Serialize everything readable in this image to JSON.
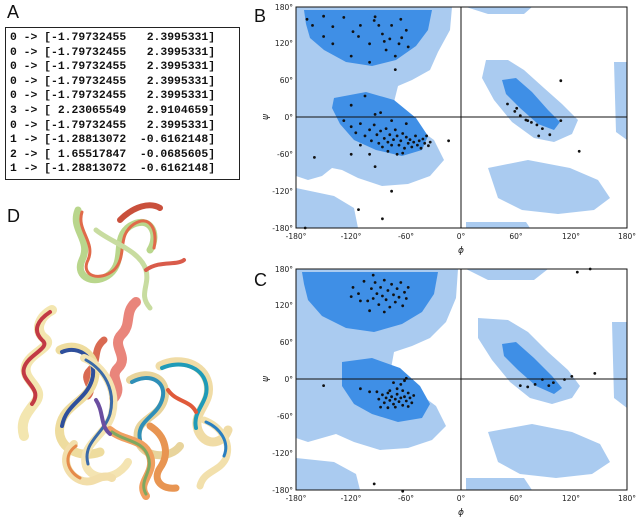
{
  "panel_labels": {
    "a": "A",
    "b": "B",
    "c": "C",
    "d": "D"
  },
  "panel_a": {
    "lines": [
      "0 -> [-1.79732455   2.3995331]",
      "0 -> [-1.79732455   2.3995331]",
      "0 -> [-1.79732455   2.3995331]",
      "0 -> [-1.79732455   2.3995331]",
      "0 -> [-1.79732455   2.3995331]",
      "3 -> [ 2.23065549   2.9104659]",
      "0 -> [-1.79732455   2.3995331]",
      "1 -> [-1.28813072  -0.6162148]",
      "2 -> [ 1.65517847  -0.0685605]",
      "1 -> [-1.28813072  -0.6162148]"
    ]
  },
  "ramachandran": {
    "xlabel": "ϕ",
    "ylabel": "ψ",
    "x_ticks": [
      "-180°",
      "-120°",
      "-60°",
      "0°",
      "60°",
      "120°",
      "180°"
    ],
    "y_ticks": [
      "180°",
      "120°",
      "60°",
      "0°",
      "-60°",
      "-120°",
      "-180°"
    ],
    "colors": {
      "allowed": "#aacbf0",
      "favored": "#3f8fe6",
      "points": "#111111"
    }
  },
  "chart_data": [
    {
      "type": "scatter",
      "panel": "B",
      "xlabel": "ϕ",
      "ylabel": "ψ",
      "xlim": [
        -180,
        180
      ],
      "ylim": [
        -180,
        180
      ],
      "points": [
        [
          -168,
          160
        ],
        [
          -162,
          150
        ],
        [
          -150,
          165
        ],
        [
          -140,
          148
        ],
        [
          -128,
          163
        ],
        [
          -118,
          140
        ],
        [
          -112,
          132
        ],
        [
          -100,
          120
        ],
        [
          -95,
          158
        ],
        [
          -90,
          150
        ],
        [
          -86,
          136
        ],
        [
          -82,
          110
        ],
        [
          -78,
          128
        ],
        [
          -76,
          150
        ],
        [
          -72,
          100
        ],
        [
          -68,
          120
        ],
        [
          -66,
          160
        ],
        [
          -60,
          142
        ],
        [
          -100,
          90
        ],
        [
          -72,
          78
        ],
        [
          -58,
          115
        ],
        [
          -140,
          120
        ],
        [
          -120,
          100
        ],
        [
          -94,
          164
        ],
        [
          -84,
          124
        ],
        [
          -65,
          130
        ],
        [
          -110,
          150
        ],
        [
          -150,
          132
        ],
        [
          -128,
          -5
        ],
        [
          -120,
          -15
        ],
        [
          -115,
          -25
        ],
        [
          -110,
          -10
        ],
        [
          -105,
          -30
        ],
        [
          -100,
          -20
        ],
        [
          -98,
          -38
        ],
        [
          -95,
          -12
        ],
        [
          -92,
          -28
        ],
        [
          -90,
          -42
        ],
        [
          -88,
          -22
        ],
        [
          -86,
          -48
        ],
        [
          -84,
          -34
        ],
        [
          -82,
          -18
        ],
        [
          -80,
          -40
        ],
        [
          -78,
          -28
        ],
        [
          -76,
          -45
        ],
        [
          -74,
          -36
        ],
        [
          -72,
          -20
        ],
        [
          -70,
          -30
        ],
        [
          -68,
          -45
        ],
        [
          -66,
          -38
        ],
        [
          -64,
          -26
        ],
        [
          -62,
          -50
        ],
        [
          -60,
          -32
        ],
        [
          -58,
          -42
        ],
        [
          -56,
          -36
        ],
        [
          -54,
          -48
        ],
        [
          -52,
          -40
        ],
        [
          -50,
          -30
        ],
        [
          -48,
          -45
        ],
        [
          -46,
          -38
        ],
        [
          -44,
          -50
        ],
        [
          -42,
          -35
        ],
        [
          -40,
          -42
        ],
        [
          -38,
          -30
        ],
        [
          -36,
          -46
        ],
        [
          -34,
          -40
        ],
        [
          -60,
          -10
        ],
        [
          -64,
          -58
        ],
        [
          -70,
          -60
        ],
        [
          -80,
          -55
        ],
        [
          -100,
          -60
        ],
        [
          -110,
          -45
        ],
        [
          -94,
          5
        ],
        [
          -88,
          8
        ],
        [
          -76,
          -5
        ],
        [
          -120,
          20
        ],
        [
          -105,
          35
        ],
        [
          -14,
          -38
        ],
        [
          -160,
          -65
        ],
        [
          -112,
          -150
        ],
        [
          -86,
          -165
        ],
        [
          -76,
          -120
        ],
        [
          -170,
          -180
        ],
        [
          -94,
          -80
        ],
        [
          -120,
          -60
        ],
        [
          50,
          22
        ],
        [
          58,
          10
        ],
        [
          64,
          3
        ],
        [
          70,
          -4
        ],
        [
          76,
          -8
        ],
        [
          82,
          -12
        ],
        [
          88,
          -18
        ],
        [
          96,
          -28
        ],
        [
          108,
          60
        ],
        [
          108,
          -5
        ],
        [
          128,
          -55
        ],
        [
          72,
          -5
        ],
        [
          84,
          -30
        ],
        [
          60,
          15
        ]
      ]
    },
    {
      "type": "scatter",
      "panel": "C",
      "xlabel": "ϕ",
      "ylabel": "ψ",
      "xlim": [
        -180,
        180
      ],
      "ylim": [
        -180,
        180
      ],
      "points": [
        [
          -118,
          150
        ],
        [
          -112,
          140
        ],
        [
          -106,
          160
        ],
        [
          -102,
          128
        ],
        [
          -98,
          148
        ],
        [
          -96,
          132
        ],
        [
          -94,
          158
        ],
        [
          -92,
          140
        ],
        [
          -90,
          122
        ],
        [
          -88,
          150
        ],
        [
          -86,
          136
        ],
        [
          -84,
          162
        ],
        [
          -82,
          130
        ],
        [
          -80,
          145
        ],
        [
          -78,
          118
        ],
        [
          -76,
          155
        ],
        [
          -74,
          138
        ],
        [
          -72,
          126
        ],
        [
          -70,
          148
        ],
        [
          -68,
          134
        ],
        [
          -66,
          158
        ],
        [
          -64,
          120
        ],
        [
          -62,
          142
        ],
        [
          -60,
          132
        ],
        [
          -58,
          150
        ],
        [
          -100,
          112
        ],
        [
          -110,
          128
        ],
        [
          -120,
          135
        ],
        [
          -84,
          110
        ],
        [
          -96,
          170
        ],
        [
          -90,
          -32
        ],
        [
          -86,
          -25
        ],
        [
          -84,
          -38
        ],
        [
          -82,
          -30
        ],
        [
          -80,
          -22
        ],
        [
          -78,
          -34
        ],
        [
          -76,
          -28
        ],
        [
          -74,
          -40
        ],
        [
          -72,
          -32
        ],
        [
          -70,
          -24
        ],
        [
          -68,
          -36
        ],
        [
          -66,
          -30
        ],
        [
          -64,
          -42
        ],
        [
          -62,
          -28
        ],
        [
          -60,
          -35
        ],
        [
          -58,
          -22
        ],
        [
          -56,
          -30
        ],
        [
          -54,
          -38
        ],
        [
          -78,
          -18
        ],
        [
          -70,
          -15
        ],
        [
          -66,
          -8
        ],
        [
          -62,
          -2
        ],
        [
          -64,
          -18
        ],
        [
          -72,
          -45
        ],
        [
          -80,
          -46
        ],
        [
          -88,
          -45
        ],
        [
          -58,
          -44
        ],
        [
          -52,
          -26
        ],
        [
          -92,
          -20
        ],
        [
          -110,
          -15
        ],
        [
          -100,
          -20
        ],
        [
          -60,
          2
        ],
        [
          -74,
          -5
        ],
        [
          -150,
          -10
        ],
        [
          -95,
          -170
        ],
        [
          -64,
          -182
        ],
        [
          140,
          180
        ],
        [
          126,
          175
        ],
        [
          100,
          -5
        ],
        [
          95,
          -10
        ],
        [
          80,
          -8
        ],
        [
          88,
          0
        ],
        [
          112,
          0
        ],
        [
          120,
          5
        ],
        [
          145,
          10
        ],
        [
          64,
          -10
        ],
        [
          72,
          -12
        ]
      ]
    }
  ]
}
